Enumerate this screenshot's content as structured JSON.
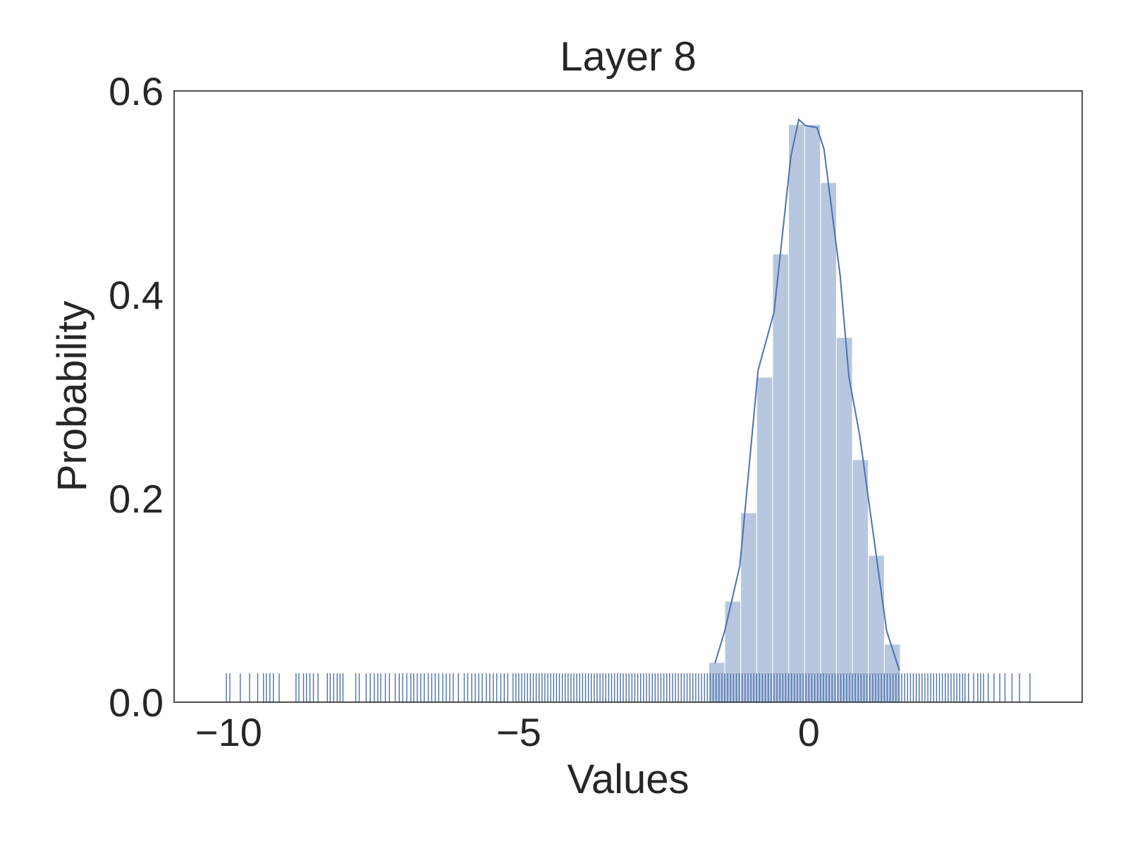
{
  "chart_data": {
    "type": "histogram",
    "title": "Layer 8",
    "xlabel": "Values",
    "ylabel": "Probability",
    "bins": [
      -1.725,
      -1.45,
      -1.175,
      -0.9,
      -0.625,
      -0.35,
      -0.075,
      0.2,
      0.475,
      0.75,
      1.025,
      1.3,
      1.575
    ],
    "values": [
      0.039,
      0.099,
      0.186,
      0.319,
      0.44,
      0.567,
      0.567,
      0.51,
      0.358,
      0.238,
      0.144,
      0.057
    ],
    "color": "#4c72b0",
    "kde": {
      "x": [
        -1.62,
        -1.45,
        -1.19,
        -0.875,
        -0.6,
        -0.31,
        -0.175,
        -0.06,
        0.14,
        0.26,
        0.54,
        0.69,
        0.875,
        1.34,
        1.56
      ],
      "y": [
        0.038,
        0.07,
        0.134,
        0.326,
        0.383,
        0.536,
        0.572,
        0.566,
        0.564,
        0.543,
        0.418,
        0.319,
        0.262,
        0.07,
        0.031
      ],
      "color": "#4c72b0"
    },
    "rug": {
      "color": "#4c72b0",
      "values": [
        -10.04,
        -9.98,
        -9.8,
        -9.64,
        -9.5,
        -9.4,
        -9.35,
        -9.29,
        -9.23,
        -9.13,
        -8.84,
        -8.79,
        -8.71,
        -8.66,
        -8.6,
        -8.54,
        -8.46,
        -8.3,
        -8.25,
        -8.19,
        -8.13,
        -8.08,
        -8.03,
        -7.81,
        -7.75,
        -7.63,
        -7.56,
        -7.49,
        -7.43,
        -7.38,
        -7.3,
        -7.23,
        -7.13,
        -7.06,
        -7.0,
        -6.93,
        -6.86,
        -6.81,
        -6.75,
        -6.69,
        -6.63,
        -6.56,
        -6.5,
        -6.44,
        -6.38,
        -6.31,
        -6.25,
        -6.19,
        -6.13,
        -6.04,
        -5.94,
        -5.88,
        -5.81,
        -5.75,
        -5.69,
        -5.63,
        -5.56,
        -5.5,
        -5.44,
        -5.38,
        -5.31,
        -5.25,
        -5.19,
        -5.1,
        -5.05,
        -5.0,
        -4.95,
        -4.9,
        -4.85,
        -4.8,
        -4.75,
        -4.7,
        -4.65,
        -4.6,
        -4.55,
        -4.5,
        -4.45,
        -4.4,
        -4.35,
        -4.3,
        -4.25,
        -4.2,
        -4.15,
        -4.1,
        -4.05,
        -4.0,
        -3.95,
        -3.9,
        -3.85,
        -3.8,
        -3.75,
        -3.7,
        -3.65,
        -3.6,
        -3.55,
        -3.5,
        -3.45,
        -3.4,
        -3.35,
        -3.3,
        -3.25,
        -3.2,
        -3.15,
        -3.1,
        -3.05,
        -3.0,
        -2.95,
        -2.9,
        -2.85,
        -2.8,
        -2.75,
        -2.7,
        -2.65,
        -2.6,
        -2.55,
        -2.5,
        -2.45,
        -2.4,
        -2.35,
        -2.3,
        -2.25,
        -2.2,
        -2.15,
        -2.1,
        -2.05,
        -2.0,
        -1.95,
        -1.9,
        -1.85,
        -1.8,
        -1.75,
        -1.7,
        -1.65,
        -1.6,
        -1.55,
        -1.5,
        -1.45,
        -1.4,
        -1.35,
        -1.3,
        -1.25,
        -1.2,
        -1.15,
        -1.1,
        -1.05,
        -1.0,
        -0.95,
        -0.9,
        -0.85,
        -0.8,
        -0.75,
        -0.7,
        -0.65,
        -0.6,
        -0.55,
        -0.5,
        -0.45,
        -0.4,
        -0.35,
        -0.3,
        -0.25,
        -0.2,
        -0.15,
        -0.1,
        -0.05,
        0.0,
        0.05,
        0.1,
        0.15,
        0.2,
        0.25,
        0.3,
        0.35,
        0.4,
        0.45,
        0.5,
        0.55,
        0.6,
        0.65,
        0.7,
        0.75,
        0.8,
        0.85,
        0.9,
        0.95,
        1.0,
        1.05,
        1.1,
        1.15,
        1.2,
        1.25,
        1.3,
        1.35,
        1.4,
        1.45,
        1.5,
        1.55,
        1.6,
        1.65,
        1.7,
        1.75,
        1.8,
        1.85,
        1.9,
        1.95,
        2.0,
        2.05,
        2.1,
        2.15,
        2.2,
        2.25,
        2.3,
        2.35,
        2.4,
        2.45,
        2.5,
        2.55,
        2.6,
        2.65,
        2.69,
        2.75,
        2.84,
        2.91,
        2.96,
        3.01,
        3.09,
        3.19,
        3.29,
        3.38,
        3.5,
        3.63,
        3.81
      ]
    },
    "xlim": [
      -10.94,
      4.71
    ],
    "ylim": [
      0,
      0.6
    ],
    "xticks": [
      {
        "value": -10,
        "label": "−10"
      },
      {
        "value": -5,
        "label": "−5"
      },
      {
        "value": 0,
        "label": "0"
      }
    ],
    "yticks": [
      {
        "value": 0,
        "label": "0.0"
      },
      0.2,
      0.4,
      0.6
    ],
    "grid": false
  }
}
